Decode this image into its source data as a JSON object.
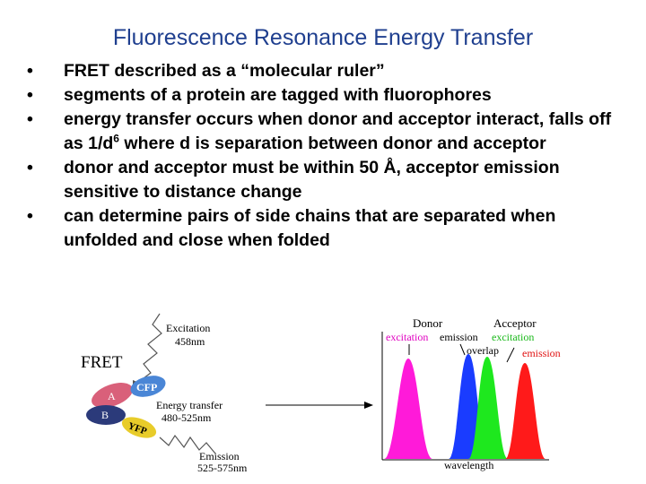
{
  "title": "Fluorescence Resonance Energy Transfer",
  "bullets": [
    {
      "text": "FRET described as a “molecular ruler”"
    },
    {
      "text": "segments of a protein are tagged with fluorophores"
    },
    {
      "text": "energy transfer occurs when donor and acceptor interact, falls off as 1/d",
      "sup": "6",
      "rest": " where d is separation between donor and acceptor"
    },
    {
      "text": "donor and acceptor must be within 50 Å, acceptor emission sensitive to distance change"
    },
    {
      "text": "can determine pairs of side chains that are separated when unfolded and close when folded"
    }
  ],
  "fret_diagram": {
    "label": "FRET",
    "excitation": "Excitation",
    "excitation_range": "458nm",
    "donor": "CFP",
    "site_a": "A",
    "site_b": "B",
    "acceptor": "YFP",
    "transfer": "Energy transfer",
    "transfer_range": "480-525nm",
    "emission": "Emission",
    "emission_range": "525-575nm"
  },
  "spectra_diagram": {
    "donor": "Donor",
    "donor_excitation": "excitation",
    "donor_emission": "emission",
    "acceptor": "Acceptor",
    "acceptor_excitation": "excitation",
    "overlap": "overlap",
    "acceptor_emission": "emission",
    "x_label": "wavelength"
  }
}
